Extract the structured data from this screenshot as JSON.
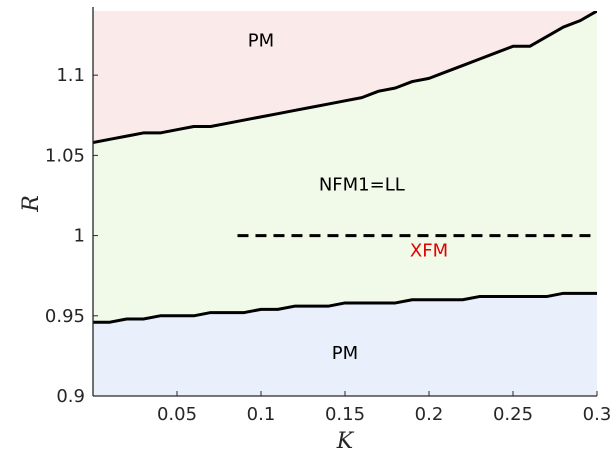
{
  "chart_data": {
    "type": "area",
    "title": "",
    "xlabel": "K",
    "ylabel": "R",
    "xlim": [
      0,
      0.3
    ],
    "ylim": [
      0.9,
      1.14
    ],
    "xticks": [
      0.05,
      0.1,
      0.15,
      0.2,
      0.25,
      0.3
    ],
    "xtick_labels": [
      "0.05",
      "0.1",
      "0.15",
      "0.2",
      "0.25",
      "0.3"
    ],
    "yticks": [
      0.9,
      0.95,
      1.0,
      1.05,
      1.1
    ],
    "ytick_labels": [
      "0.9",
      "0.95",
      "1",
      "1.05",
      "1.1"
    ],
    "grid": false,
    "colors": {
      "pm_upper_fill": "#fbeaea",
      "nfm_fill": "#f1fae9",
      "pm_lower_fill": "#e9f0fb",
      "boundary": "#000000",
      "xfm_text": "#e00000",
      "axis": "#262626"
    },
    "regions": [
      {
        "label": "PM",
        "x": 0.1,
        "y": 1.118
      },
      {
        "label": "NFM1=LL",
        "x": 0.16,
        "y": 1.028
      },
      {
        "label": "XFM",
        "x": 0.2,
        "y": 0.987
      },
      {
        "label": "PM",
        "x": 0.15,
        "y": 0.923
      }
    ],
    "upper_boundary": {
      "x": [
        0,
        0.01,
        0.02,
        0.03,
        0.04,
        0.05,
        0.06,
        0.07,
        0.08,
        0.09,
        0.1,
        0.11,
        0.12,
        0.13,
        0.14,
        0.15,
        0.16,
        0.17,
        0.18,
        0.19,
        0.2,
        0.21,
        0.22,
        0.23,
        0.24,
        0.25,
        0.26,
        0.27,
        0.28,
        0.29,
        0.3
      ],
      "y": [
        1.058,
        1.06,
        1.062,
        1.064,
        1.064,
        1.066,
        1.068,
        1.068,
        1.07,
        1.072,
        1.074,
        1.076,
        1.078,
        1.08,
        1.082,
        1.084,
        1.086,
        1.09,
        1.092,
        1.096,
        1.098,
        1.102,
        1.106,
        1.11,
        1.114,
        1.118,
        1.118,
        1.124,
        1.13,
        1.134,
        1.14
      ]
    },
    "lower_boundary": {
      "x": [
        0,
        0.01,
        0.02,
        0.03,
        0.04,
        0.05,
        0.06,
        0.07,
        0.08,
        0.09,
        0.1,
        0.11,
        0.12,
        0.13,
        0.14,
        0.15,
        0.16,
        0.17,
        0.18,
        0.19,
        0.2,
        0.21,
        0.22,
        0.23,
        0.24,
        0.25,
        0.26,
        0.27,
        0.28,
        0.29,
        0.3
      ],
      "y": [
        0.946,
        0.946,
        0.948,
        0.948,
        0.95,
        0.95,
        0.95,
        0.952,
        0.952,
        0.952,
        0.954,
        0.954,
        0.956,
        0.956,
        0.956,
        0.958,
        0.958,
        0.958,
        0.958,
        0.96,
        0.96,
        0.96,
        0.96,
        0.962,
        0.962,
        0.962,
        0.962,
        0.962,
        0.964,
        0.964,
        0.964
      ]
    },
    "xfm_line": {
      "x": [
        0.086,
        0.3
      ],
      "y": 1.0,
      "style": "dashed"
    }
  }
}
